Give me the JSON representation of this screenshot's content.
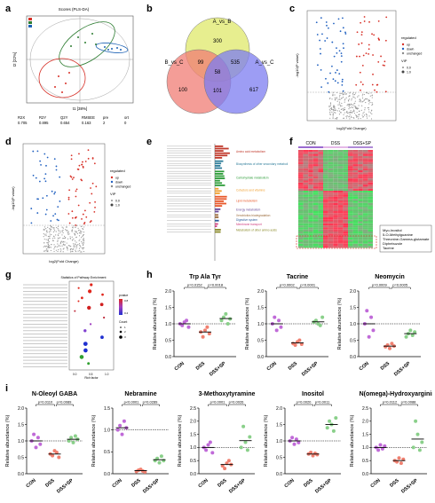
{
  "labels": {
    "a": "a",
    "b": "b",
    "c": "c",
    "d": "d",
    "e": "e",
    "f": "f",
    "g": "g",
    "h": "h",
    "i": "i"
  },
  "panel_a": {
    "title": "Scores (PLS-DA)",
    "xlabel": "t1 [38%]",
    "ylabel": "t2 [22%]",
    "stats_labels": [
      "R2X",
      "R2Y",
      "Q2Y",
      "RMSEE",
      "pre",
      "ort"
    ],
    "stats_values": [
      "0.705",
      "0.895",
      "0.654",
      "0.163",
      "2",
      "0"
    ],
    "legend_colors": [
      "#d73027",
      "#2e7d32",
      "#1e63b5"
    ],
    "group_colors": {
      "con": "#d73027",
      "dss": "#2e7d32",
      "sp": "#1e63b5"
    }
  },
  "panel_b": {
    "sets": [
      "A_vs_B",
      "B_vs_C",
      "A_vs_C"
    ],
    "regions": {
      "a_only": "300",
      "b_only": "100",
      "c_only": "617",
      "ab": "99",
      "ac": "535",
      "bc": "101",
      "abc": "58"
    },
    "colors": [
      "#dfe86a",
      "#f07c74",
      "#7c7cf0"
    ]
  },
  "panel_c": {
    "xlabel": "log2(Fold Change)",
    "ylabel": "-log10(P value)",
    "legend_title": "regulated",
    "legend_items": [
      "up",
      "down",
      "unchanged"
    ],
    "size_title": "VIP",
    "size_items": [
      "0.0",
      "1.0"
    ]
  },
  "panel_d": {
    "xlabel": "log2(Fold Change)",
    "ylabel": "-log10(P value)",
    "legend_title": "regulated",
    "legend_items": [
      "up",
      "down",
      "unchanged"
    ],
    "size_title": "VIP",
    "size_items": [
      "0.0",
      "1.0"
    ]
  },
  "panel_e": {
    "categories": [
      "Amino acid metabolism",
      "Biosynthesis of other secondary metabolites",
      "Carbohydrate metabolism",
      "Cofactors and vitamins",
      "Lipid metabolism",
      "Energy metabolism",
      "Xenobiotics biodegradation",
      "Digestive system",
      "Membrane transport",
      "Metabolism of other amino acids"
    ],
    "category_colors": [
      "#c0392b",
      "#2e7d9a",
      "#2e9d3a",
      "#f0a030",
      "#e8582a",
      "#6a4a9a",
      "#9a6a3a",
      "#2a5a9a",
      "#d04080",
      "#8a8a2a"
    ]
  },
  "panel_f": {
    "groups": [
      "CON",
      "DSS",
      "DSS+SP"
    ],
    "highlight": [
      "Myo-Inositol",
      "5-O-Methylguanine",
      "Threonine-Gamma-glutamate",
      "Diphebuzole",
      "Tacrine"
    ]
  },
  "panel_g": {
    "title": "Statistics of Pathway Enrichment",
    "xlabel": "Rich factor",
    "ticks": [
      "0.0",
      "0.5",
      "1.0"
    ],
    "legend_title": "pvalue",
    "legend_ticks": [
      "0.8",
      "0.4"
    ],
    "count_title": "Count",
    "count_items": [
      "1",
      "2",
      "3"
    ]
  },
  "chart_data": [
    {
      "type": "scatter",
      "title": "Trp Ala Tyr",
      "ylabel": "Relative abundance (%)",
      "categories": [
        "CON",
        "DSS",
        "DSS+SP"
      ],
      "ylim": [
        0,
        2.0
      ],
      "yticks": [
        "0.0",
        "0.5",
        "1.0",
        "1.5",
        "2.0"
      ],
      "series": [
        {
          "values": [
            [
              1.0,
              0.95,
              1.05,
              1.1,
              0.9
            ],
            [
              0.75,
              0.6,
              0.8,
              0.9,
              0.7
            ],
            [
              1.1,
              1.2,
              1.3,
              1.0,
              1.15
            ]
          ]
        }
      ],
      "means": [
        1.0,
        0.75,
        1.16
      ],
      "pvalues": [
        "p=0.0152",
        "p=0.0018"
      ],
      "refline": 1.0
    },
    {
      "type": "scatter",
      "title": "Tacrine",
      "ylabel": "Relative abundance (%)",
      "categories": [
        "CON",
        "DSS",
        "DSS+SP"
      ],
      "ylim": [
        0,
        2.0
      ],
      "yticks": [
        "0.0",
        "0.5",
        "1.0",
        "1.5",
        "2.0"
      ],
      "series": [
        {
          "values": [
            [
              1.0,
              1.2,
              0.8,
              1.1,
              0.9
            ],
            [
              0.4,
              0.35,
              0.45,
              0.5,
              0.38
            ],
            [
              1.05,
              1.1,
              1.0,
              0.95,
              1.2
            ]
          ]
        }
      ],
      "means": [
        1.0,
        0.42,
        1.06
      ],
      "pvalues": [
        "p=0.0002",
        "p=0.0001"
      ],
      "refline": 1.0
    },
    {
      "type": "scatter",
      "title": "Neomycin",
      "ylabel": "Relative abundance (%)",
      "categories": [
        "CON",
        "DSS",
        "DSS+SP"
      ],
      "ylim": [
        0,
        2.0
      ],
      "yticks": [
        "0.0",
        "0.5",
        "1.0",
        "1.5",
        "2.0"
      ],
      "series": [
        {
          "values": [
            [
              1.0,
              1.4,
              0.6,
              1.2,
              0.8
            ],
            [
              0.3,
              0.35,
              0.25,
              0.4,
              0.32
            ],
            [
              0.6,
              0.7,
              0.8,
              0.65,
              0.75
            ]
          ]
        }
      ],
      "means": [
        1.0,
        0.32,
        0.7
      ],
      "pvalues": [
        "p=0.0009",
        "p=0.0005"
      ],
      "refline": 1.0
    },
    {
      "type": "scatter",
      "title": "N-Oleoyl GABA",
      "ylabel": "Relative abundance (%)",
      "categories": [
        "CON",
        "DSS",
        "DSS+SP"
      ],
      "ylim": [
        0,
        2.0
      ],
      "yticks": [
        "0.0",
        "0.5",
        "1.0",
        "1.5",
        "2.0"
      ],
      "series": [
        {
          "values": [
            [
              1.0,
              1.2,
              0.8,
              1.1,
              0.9
            ],
            [
              0.6,
              0.55,
              0.7,
              0.65,
              0.5
            ],
            [
              1.0,
              1.1,
              0.95,
              1.15,
              1.05
            ]
          ]
        }
      ],
      "means": [
        1.0,
        0.6,
        1.05
      ],
      "pvalues": [
        "p=0.0110",
        "p=0.0089"
      ],
      "refline": 1.0
    },
    {
      "type": "scatter",
      "title": "Nebramine",
      "ylabel": "Relative abundance (%)",
      "categories": [
        "CON",
        "DSS",
        "DSS+SP"
      ],
      "ylim": [
        0,
        1.5
      ],
      "yticks": [
        "0.0",
        "0.5",
        "1.0",
        "1.5"
      ],
      "series": [
        {
          "values": [
            [
              1.0,
              1.1,
              0.9,
              1.2,
              1.05
            ],
            [
              0.05,
              0.08,
              0.1,
              0.06,
              0.04
            ],
            [
              0.3,
              0.35,
              0.25,
              0.4,
              0.3
            ]
          ]
        }
      ],
      "means": [
        1.05,
        0.07,
        0.32
      ],
      "pvalues": [
        "p<0.0001",
        "p=0.0289"
      ],
      "refline": 1.0
    },
    {
      "type": "scatter",
      "title": "3-Methoxytyramine",
      "ylabel": "Relative abundance (%)",
      "categories": [
        "CON",
        "DSS",
        "DSS+SP"
      ],
      "ylim": [
        0,
        2.5
      ],
      "yticks": [
        "0.0",
        "0.5",
        "1.0",
        "1.5",
        "2.0",
        "2.5"
      ],
      "series": [
        {
          "values": [
            [
              1.0,
              0.9,
              1.1,
              1.2,
              0.8
            ],
            [
              0.3,
              0.2,
              0.4,
              0.5,
              0.35
            ],
            [
              1.0,
              1.8,
              1.2,
              0.9,
              1.4
            ]
          ]
        }
      ],
      "means": [
        1.0,
        0.35,
        1.26
      ],
      "pvalues": [
        "p=0.0001",
        "p=0.0026"
      ],
      "refline": 1.0
    },
    {
      "type": "scatter",
      "title": "Inositol",
      "ylabel": "Relative abundance (%)",
      "categories": [
        "CON",
        "DSS",
        "DSS+SP"
      ],
      "ylim": [
        0,
        2.0
      ],
      "yticks": [
        "0.0",
        "0.5",
        "1.0",
        "1.5",
        "2.0"
      ],
      "series": [
        {
          "values": [
            [
              1.0,
              1.1,
              0.9,
              1.05,
              0.95
            ],
            [
              0.6,
              0.65,
              0.55,
              0.62,
              0.58
            ],
            [
              1.4,
              1.6,
              1.5,
              1.3,
              1.7
            ]
          ]
        }
      ],
      "means": [
        1.0,
        0.6,
        1.5
      ],
      "pvalues": [
        "p=0.0020",
        "p=0.0011"
      ],
      "refline": 1.0
    },
    {
      "type": "scatter",
      "title": "N(omega)-Hydroxyarginine",
      "ylabel": "Relative abundance (%)",
      "categories": [
        "CON",
        "DSS",
        "DSS+SP"
      ],
      "ylim": [
        0,
        2.5
      ],
      "yticks": [
        "0.0",
        "0.5",
        "1.0",
        "1.5",
        "2.0",
        "2.5"
      ],
      "series": [
        {
          "values": [
            [
              1.0,
              0.9,
              1.1,
              0.95,
              1.05
            ],
            [
              0.5,
              0.45,
              0.6,
              0.4,
              0.55
            ],
            [
              1.0,
              2.0,
              1.5,
              0.9,
              1.2
            ]
          ]
        }
      ],
      "means": [
        1.0,
        0.5,
        1.32
      ],
      "pvalues": [
        "p=0.0112",
        "p=0.0088"
      ],
      "refline": 1.0
    }
  ]
}
